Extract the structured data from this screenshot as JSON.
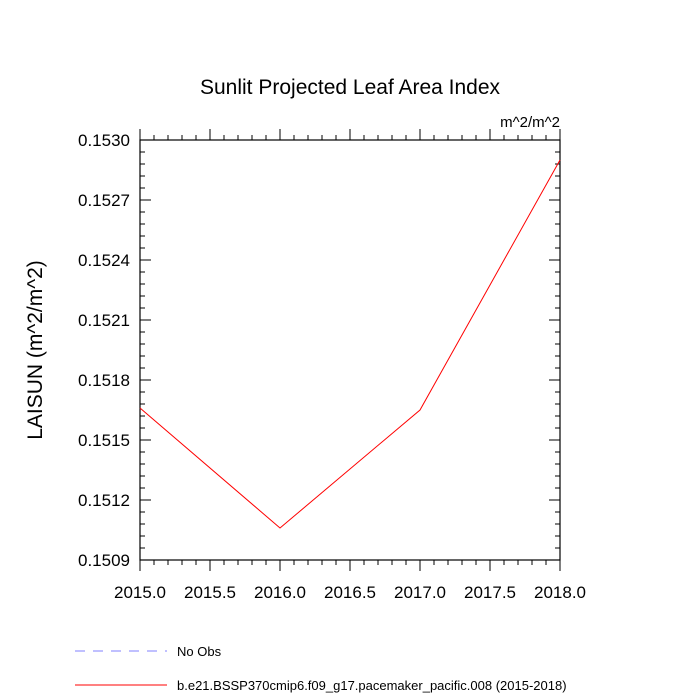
{
  "chart_data": {
    "type": "line",
    "title": "Sunlit Projected Leaf Area Index",
    "units_label": "m^2/m^2",
    "ylabel": "LAISUN  (m^2/m^2)",
    "xlabel": "",
    "xlim": [
      2015.0,
      2018.0
    ],
    "ylim": [
      0.1509,
      0.153
    ],
    "x_ticks": [
      "2015.0",
      "2015.5",
      "2016.0",
      "2016.5",
      "2017.0",
      "2017.5",
      "2018.0"
    ],
    "y_ticks": [
      "0.1509",
      "0.1512",
      "0.1515",
      "0.1518",
      "0.1521",
      "0.1524",
      "0.1527",
      "0.1530"
    ],
    "grid": false,
    "legend_position": "bottom",
    "series": [
      {
        "name": "b.e21.BSSP370cmip6.f09_g17.pacemaker_pacific.008 (2015-2018)",
        "color": "#ff0000",
        "style": "solid",
        "x": [
          2015,
          2016,
          2017,
          2018
        ],
        "y": [
          0.15166,
          0.15106,
          0.15165,
          0.1529
        ]
      }
    ],
    "legend": [
      {
        "label": "No Obs",
        "color": "#8080ff",
        "style": "dashed"
      },
      {
        "label": "b.e21.BSSP370cmip6.f09_g17.pacemaker_pacific.008 (2015-2018)",
        "color": "#ff0000",
        "style": "solid"
      }
    ]
  }
}
